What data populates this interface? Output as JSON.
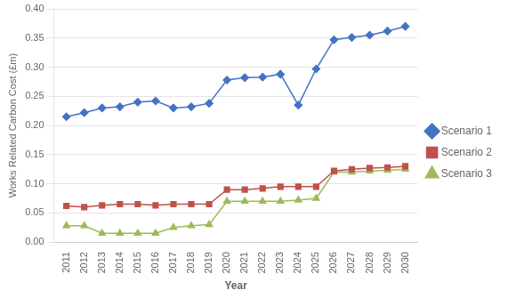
{
  "chart_data": {
    "type": "line",
    "xlabel": "Year",
    "ylabel": "Works Related Carbon Cost (£m)",
    "x": [
      2011,
      2012,
      2013,
      2014,
      2015,
      2016,
      2017,
      2018,
      2019,
      2020,
      2021,
      2022,
      2023,
      2024,
      2025,
      2026,
      2027,
      2028,
      2029,
      2030
    ],
    "series": [
      {
        "name": "Scenario 1",
        "color": "#4472C4",
        "marker": "diamond",
        "values": [
          0.215,
          0.222,
          0.23,
          0.232,
          0.24,
          0.242,
          0.23,
          0.232,
          0.238,
          0.278,
          0.282,
          0.283,
          0.288,
          0.235,
          0.297,
          0.347,
          0.351,
          0.355,
          0.362,
          0.37
        ]
      },
      {
        "name": "Scenario 2",
        "color": "#C0504D",
        "marker": "square",
        "values": [
          0.062,
          0.06,
          0.063,
          0.065,
          0.065,
          0.063,
          0.065,
          0.065,
          0.065,
          0.09,
          0.09,
          0.092,
          0.095,
          0.095,
          0.095,
          0.122,
          0.125,
          0.127,
          0.128,
          0.13
        ]
      },
      {
        "name": "Scenario 3",
        "color": "#9BBB59",
        "marker": "triangle",
        "values": [
          0.028,
          0.028,
          0.015,
          0.015,
          0.015,
          0.015,
          0.025,
          0.028,
          0.03,
          0.07,
          0.07,
          0.07,
          0.07,
          0.072,
          0.075,
          0.12,
          0.12,
          0.122,
          0.123,
          0.125
        ]
      }
    ],
    "xlim": [
      2010.3,
      2030.7
    ],
    "xticks": [
      2011,
      2012,
      2013,
      2014,
      2015,
      2016,
      2017,
      2018,
      2019,
      2020,
      2021,
      2022,
      2023,
      2024,
      2025,
      2026,
      2027,
      2028,
      2029,
      2030
    ],
    "ylim": [
      0.0,
      0.4
    ],
    "yticks": [
      {
        "value": 0.0,
        "label": "0.00"
      },
      0.05,
      {
        "value": 0.1,
        "label": "0.10"
      },
      0.15,
      {
        "value": 0.2,
        "label": "0.20"
      },
      0.25,
      {
        "value": 0.3,
        "label": "0.30"
      },
      0.35,
      {
        "value": 0.4,
        "label": "0.40"
      }
    ],
    "grid": "y",
    "legend": "right"
  }
}
